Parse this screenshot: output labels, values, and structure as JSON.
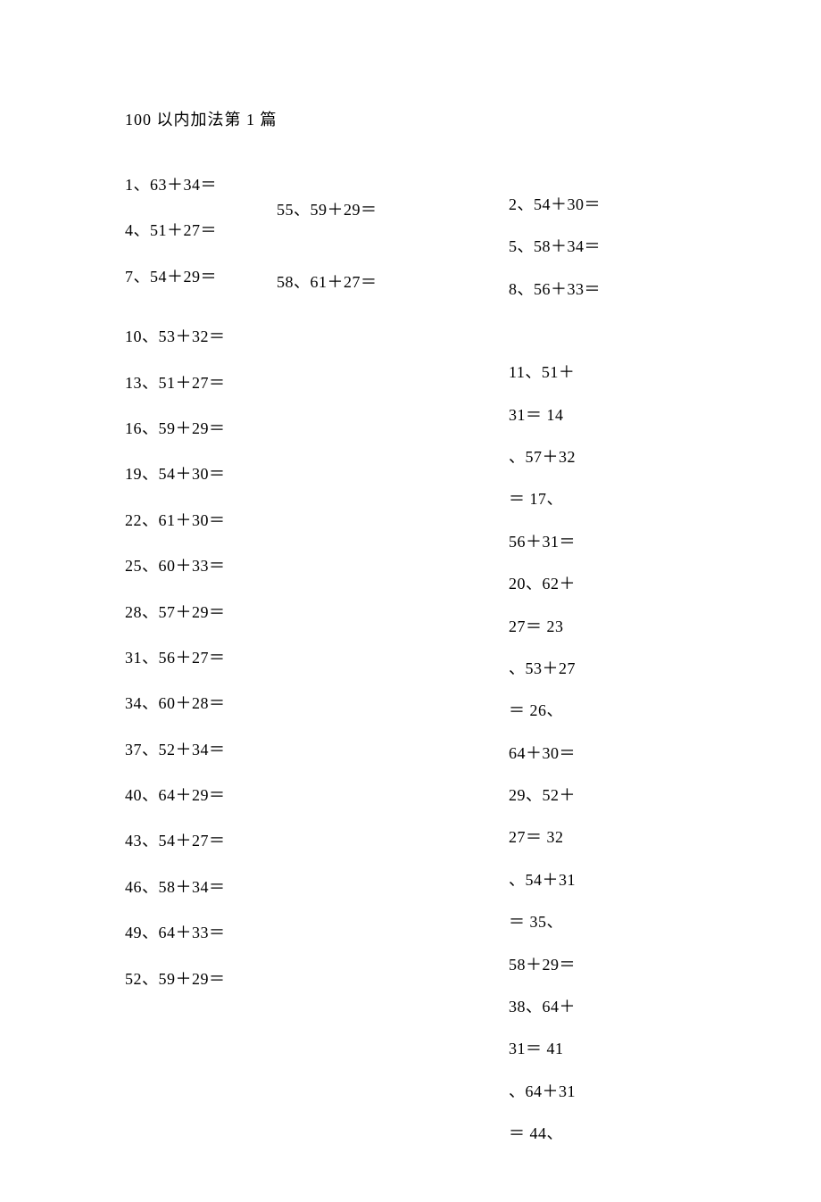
{
  "title": "100 以内加法第 1 篇",
  "font": {
    "family": "SimSun",
    "size_pt": 14,
    "color": "#000000"
  },
  "background_color": "#ffffff",
  "columns": {
    "col1": [
      "1、63＋34＝",
      "4、51＋27＝",
      "7、54＋29＝",
      "10、53＋32＝",
      "13、51＋27＝",
      "16、59＋29＝",
      "19、54＋30＝",
      "22、61＋30＝",
      "25、60＋33＝",
      "28、57＋29＝",
      "31、56＋27＝",
      "34、60＋28＝",
      "37、52＋34＝",
      "40、64＋29＝",
      "43、54＋27＝",
      "46、58＋34＝",
      "49、64＋33＝",
      "52、59＋29＝"
    ],
    "col2": [
      "55、59＋29＝",
      "58、61＋27＝"
    ],
    "col3": [
      "2、54＋30＝",
      "5、58＋34＝",
      "8、56＋33＝",
      "11、51＋",
      "31＝  14",
      "、57＋32",
      "＝  17、",
      "56＋31＝",
      "20、62＋",
      "27＝  23",
      "、53＋27",
      "＝  26、",
      "64＋30＝",
      "29、52＋",
      "27＝  32",
      "、54＋31",
      "＝  35、",
      "58＋29＝",
      "38、64＋",
      "31＝  41",
      "、64＋31",
      "＝  44、"
    ]
  },
  "col1_gap_after_index": 2,
  "col3_gap_before_index": 3
}
